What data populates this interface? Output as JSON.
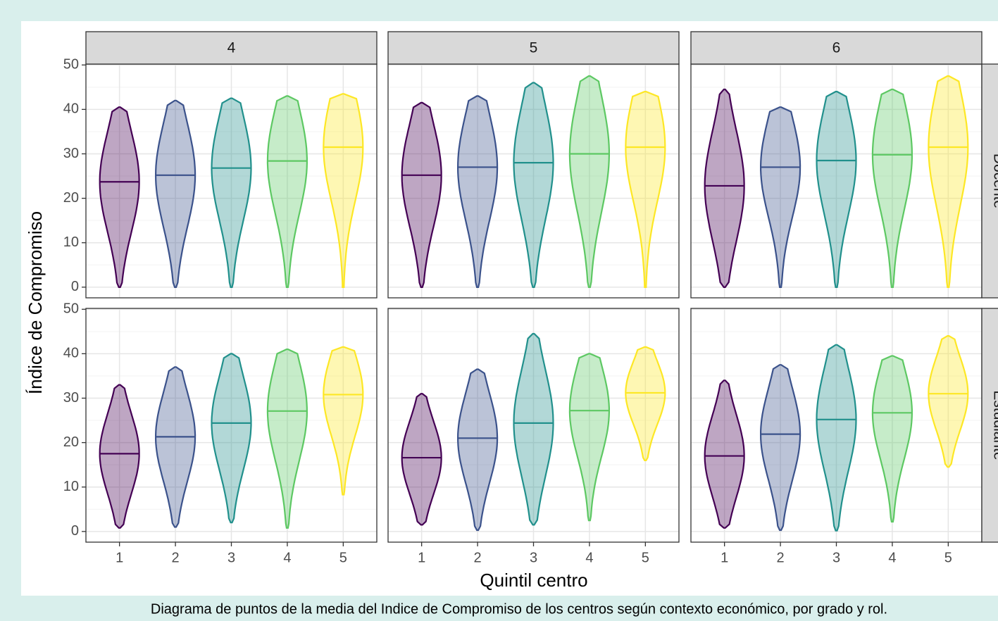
{
  "chart_data": {
    "type": "violin",
    "y_label": "Índice de Compromiso",
    "x_label": "Quintil centro",
    "caption": "Diagrama de puntos de la media del Indice de Compromiso de los centros según contexto económico, por grado y rol.",
    "columns": [
      "4",
      "5",
      "6"
    ],
    "rows": [
      "Docente",
      "Estudiante"
    ],
    "categories": [
      "1",
      "2",
      "3",
      "4",
      "5"
    ],
    "colors": [
      "#440154",
      "#3b528b",
      "#21908c",
      "#5dc863",
      "#fde725"
    ],
    "ylim": [
      -2.4,
      50.2
    ],
    "yticks": [
      0,
      10,
      20,
      30,
      40,
      50
    ],
    "grid": true,
    "panels": [
      [
        {
          "median": [
            23.7,
            25.2,
            26.8,
            28.4,
            31.5
          ],
          "min": [
            0,
            0,
            0,
            0,
            0
          ],
          "max": [
            40.5,
            42,
            42.5,
            43,
            43.5
          ]
        },
        {
          "median": [
            25.2,
            27,
            28,
            30,
            31.5
          ],
          "min": [
            0,
            0,
            0,
            0,
            0
          ],
          "max": [
            41.5,
            43,
            46,
            47.5,
            44
          ]
        },
        {
          "median": [
            22.8,
            27,
            28.5,
            29.8,
            31.5
          ],
          "min": [
            0,
            0,
            0,
            0,
            0
          ],
          "max": [
            44.5,
            40.5,
            44,
            44.5,
            47.5
          ]
        }
      ],
      [
        {
          "median": [
            17.5,
            21.3,
            24.4,
            27.1,
            30.8
          ],
          "min": [
            0.8,
            1,
            2,
            0.8,
            8.3
          ],
          "max": [
            33,
            37,
            40,
            41,
            41.5
          ]
        },
        {
          "median": [
            16.6,
            21,
            24.4,
            27.2,
            31.2
          ],
          "min": [
            1.5,
            0.3,
            1.5,
            2.5,
            16
          ],
          "max": [
            31,
            36.5,
            44.5,
            40,
            41.5
          ]
        },
        {
          "median": [
            17,
            21.9,
            25.2,
            26.7,
            31
          ],
          "min": [
            0.8,
            0.3,
            0.2,
            2.2,
            14.5
          ],
          "max": [
            34,
            37.5,
            42,
            39.5,
            44
          ]
        }
      ]
    ]
  }
}
